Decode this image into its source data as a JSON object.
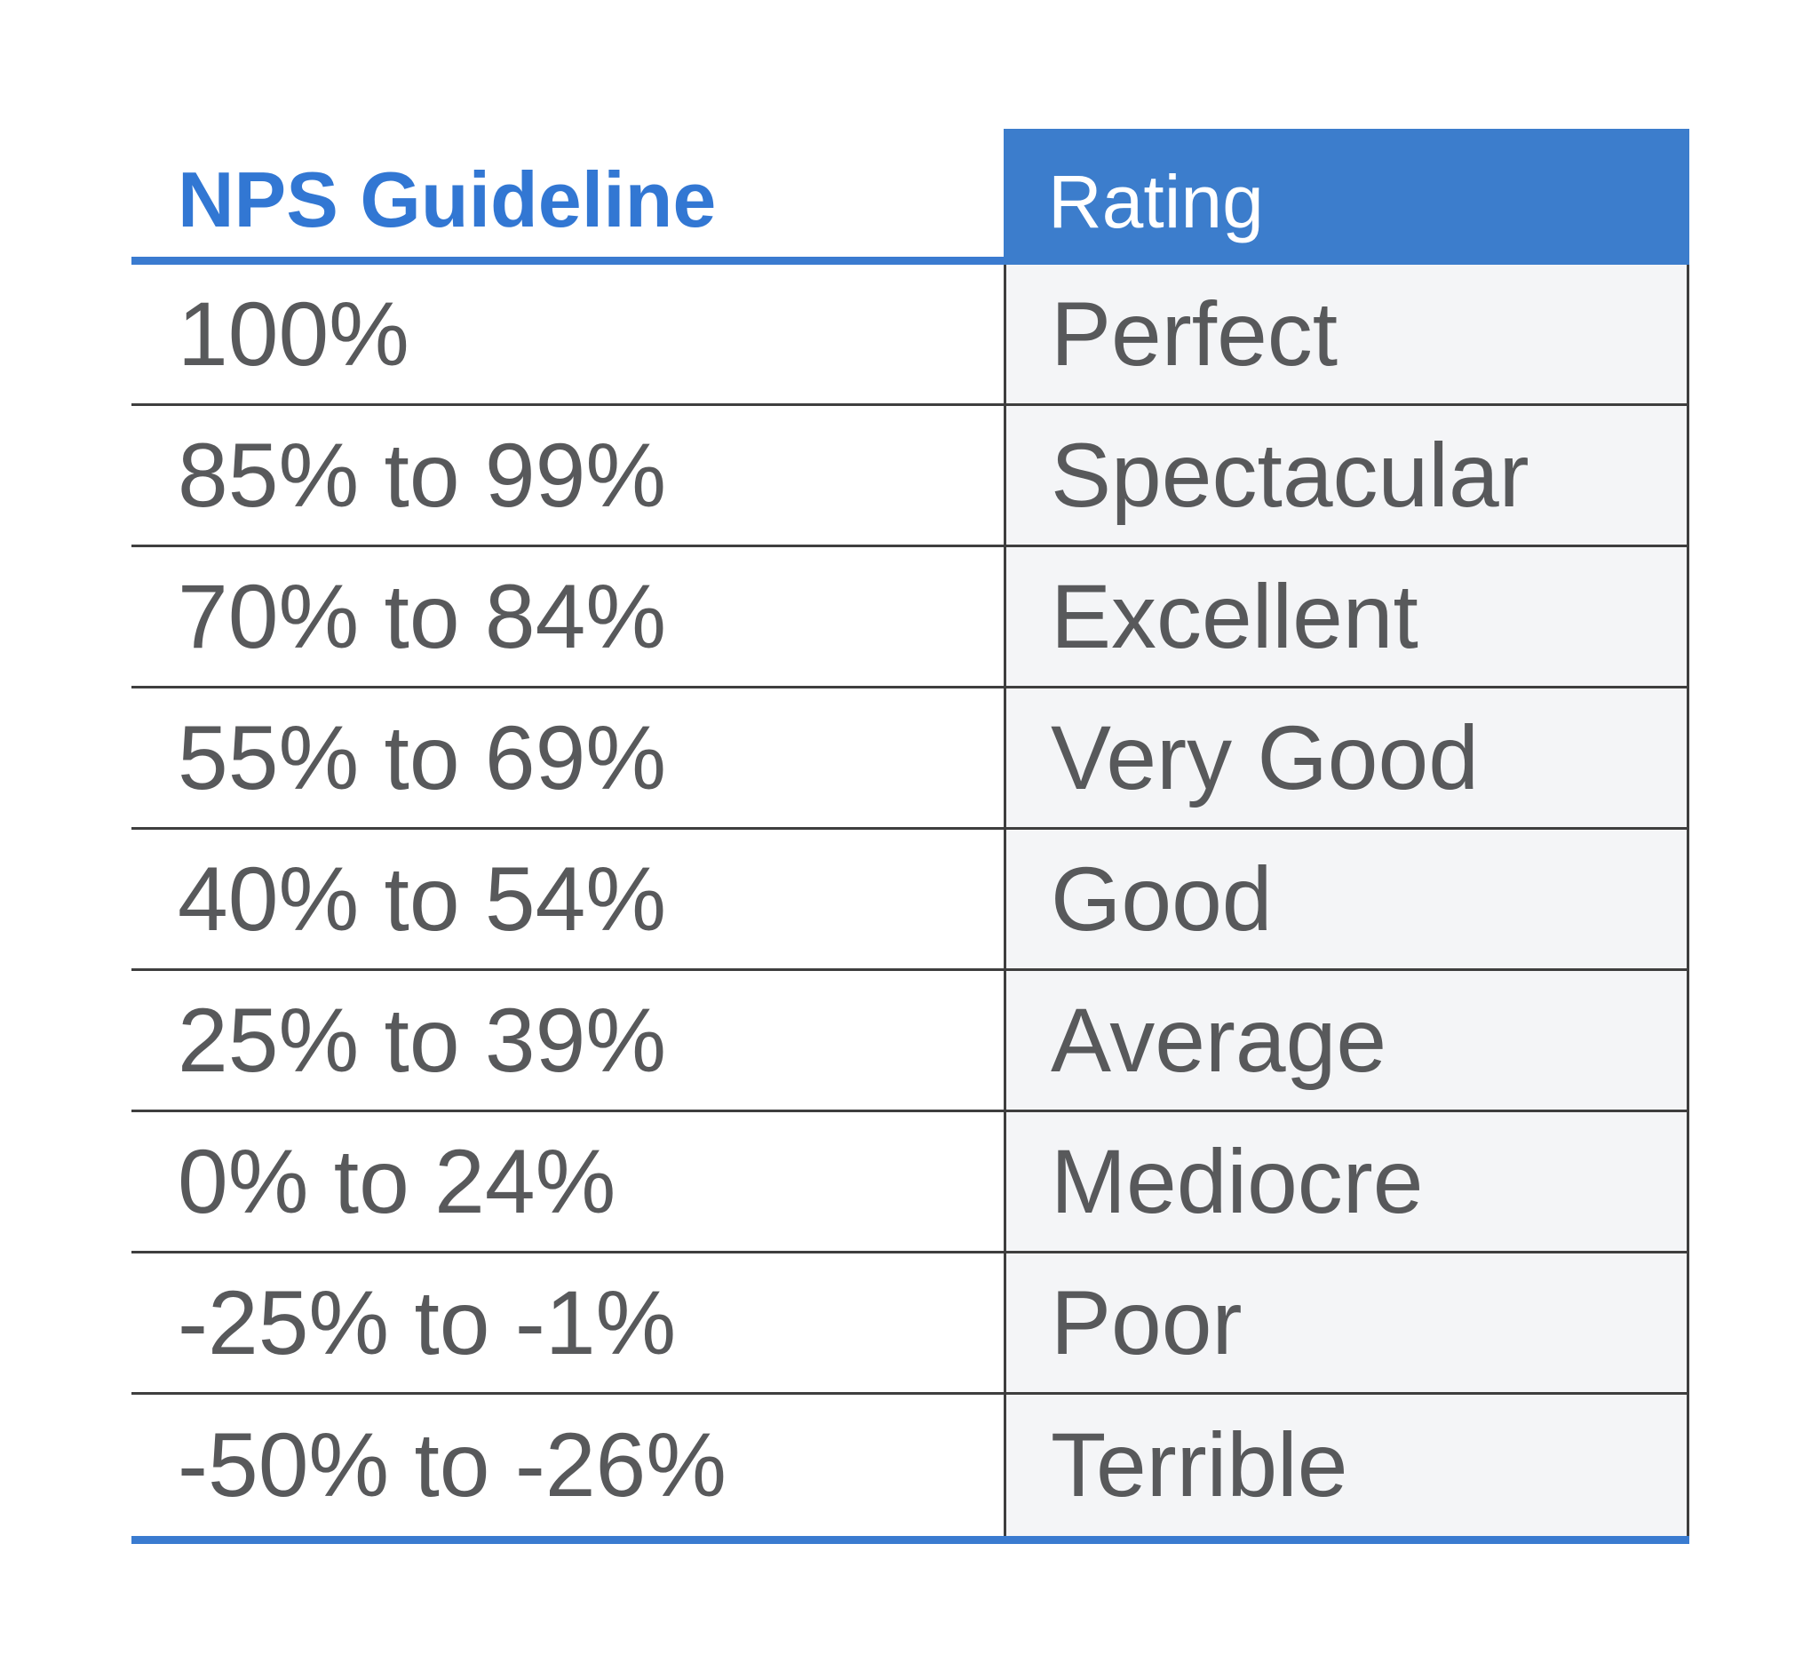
{
  "colors": {
    "accent_blue": "#3c7dcc",
    "title_blue": "#3277d3",
    "line_blue": "#3a7bd0",
    "body_text": "#58595b",
    "divider": "#3e3e3e",
    "rating_cell_bg": "#f4f5f7"
  },
  "table": {
    "header": {
      "guideline": "NPS Guideline",
      "rating": "Rating"
    },
    "rows": [
      {
        "guideline": "100%",
        "rating": "Perfect"
      },
      {
        "guideline": "85% to 99%",
        "rating": "Spectacular"
      },
      {
        "guideline": "70% to 84%",
        "rating": "Excellent"
      },
      {
        "guideline": "55% to 69%",
        "rating": "Very Good"
      },
      {
        "guideline": "40% to 54%",
        "rating": "Good"
      },
      {
        "guideline": "25% to 39%",
        "rating": "Average"
      },
      {
        "guideline": "0% to 24%",
        "rating": "Mediocre"
      },
      {
        "guideline": "-25% to -1%",
        "rating": "Poor"
      },
      {
        "guideline": "-50% to -26%",
        "rating": "Terrible"
      }
    ]
  },
  "chart_data": {
    "type": "table",
    "title": "NPS Guideline",
    "columns": [
      "NPS Guideline",
      "Rating"
    ],
    "rows": [
      [
        "100%",
        "Perfect"
      ],
      [
        "85% to 99%",
        "Spectacular"
      ],
      [
        "70% to 84%",
        "Excellent"
      ],
      [
        "55% to 69%",
        "Very Good"
      ],
      [
        "40% to 54%",
        "Good"
      ],
      [
        "25% to 39%",
        "Average"
      ],
      [
        "0% to 24%",
        "Mediocre"
      ],
      [
        "-25% to -1%",
        "Poor"
      ],
      [
        "-50% to -26%",
        "Terrible"
      ]
    ],
    "layout": {
      "grid": "horizontal dividers between every row",
      "header_style": "left header plain blue bold text with thick blue underline; right header white text on blue fill",
      "footer": "thick blue rule across full table width"
    }
  }
}
